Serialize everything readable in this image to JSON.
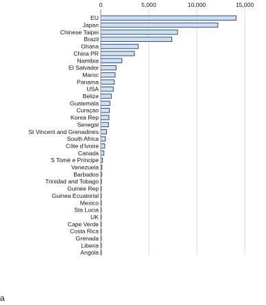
{
  "panel_label": "a",
  "chart_data": {
    "type": "bar",
    "orientation": "horizontal",
    "xlim": [
      0,
      15000
    ],
    "xticks": [
      0,
      5000,
      10000,
      15000
    ],
    "xtick_labels": [
      "0",
      "5,000",
      "10,000",
      "15,000"
    ],
    "grid": true,
    "categories": [
      "EU",
      "Japan",
      "Chinese Taipei",
      "Brazil",
      "Ghana",
      "China PR",
      "Namibia",
      "El Salvador",
      "Maroc",
      "Panama",
      "USA",
      "Belize",
      "Guatemala",
      "Curaçao",
      "Korea Rep",
      "Senegal",
      "St Vincent and Grenadines",
      "South Africa",
      "Côte d'Ivoire",
      "Canada",
      "S Tomé e Príncipe",
      "Venezuela",
      "Barbados",
      "Trinidad and Tobago",
      "Guinée Rep",
      "Guinea Ecuatorial",
      "Mexico",
      "Sta Lucia",
      "UK",
      "Cape Verde",
      "Costa Rica",
      "Grenada",
      "Liberia",
      "Angola"
    ],
    "values": [
      14100,
      12200,
      8000,
      7400,
      3900,
      3500,
      2200,
      1600,
      1500,
      1400,
      1300,
      1100,
      950,
      900,
      850,
      800,
      600,
      480,
      420,
      330,
      180,
      120,
      90,
      70,
      55,
      45,
      38,
      30,
      25,
      20,
      15,
      12,
      10,
      8
    ]
  }
}
